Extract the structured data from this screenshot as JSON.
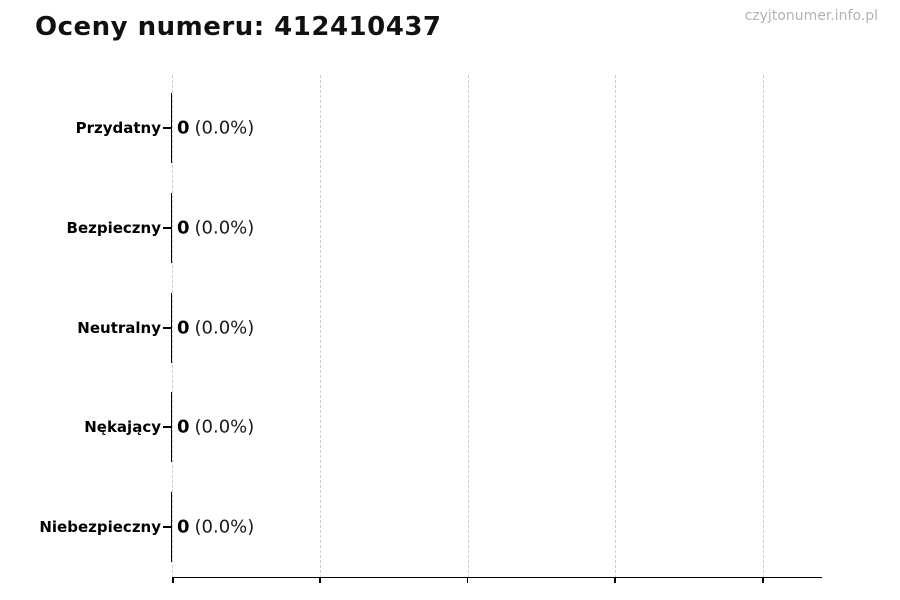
{
  "page": {
    "title": "Oceny numeru: 412410437",
    "watermark": "czyjtonumer.info.pl"
  },
  "chart_data": {
    "type": "bar",
    "orientation": "horizontal",
    "title": "Oceny numeru: 412410437",
    "categories": [
      "Przydatny",
      "Bezpieczny",
      "Neutralny",
      "Nękający",
      "Niebezpieczny"
    ],
    "values": [
      0,
      0,
      0,
      0,
      0
    ],
    "percent_labels": [
      "0.0%",
      "0.0%",
      "0.0%",
      "0.0%",
      "0.0%"
    ],
    "xlabel": "",
    "ylabel": "",
    "x_tick_labels_visible": false,
    "grid": "vertical dashed gridlines, 5 lines evenly spaced",
    "legend": "none",
    "rows": [
      {
        "label": "Przydatny",
        "count": "0",
        "pct": "(0.0%)"
      },
      {
        "label": "Bezpieczny",
        "count": "0",
        "pct": "(0.0%)"
      },
      {
        "label": "Neutralny",
        "count": "0",
        "pct": "(0.0%)"
      },
      {
        "label": "Nękający",
        "count": "0",
        "pct": "(0.0%)"
      },
      {
        "label": "Niebezpieczny",
        "count": "0",
        "pct": "(0.0%)"
      }
    ],
    "colors": {
      "bar_edge": "#000000",
      "grid": "#cccccc",
      "axis": "#000000",
      "text": "#000000",
      "watermark": "#b3b3b3"
    }
  }
}
